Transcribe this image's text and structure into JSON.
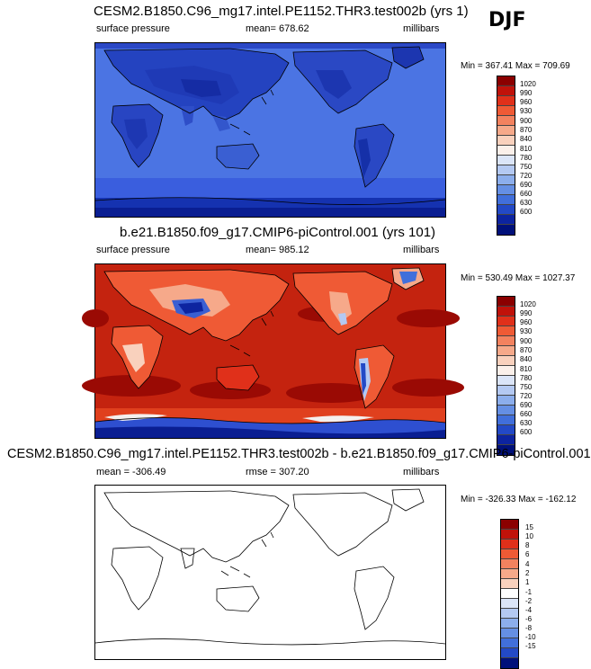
{
  "season": "DJF",
  "panels": [
    {
      "title": "CESM2.B1850.C96_mg17.intel.PE1152.THR3.test002b (yrs 1)",
      "left_label": "surface pressure",
      "center_label": "mean= 678.62",
      "right_label": "millibars",
      "minmax": "Min = 367.41 Max = 709.69",
      "colorbar": {
        "labels": [
          "1020",
          "990",
          "960",
          "930",
          "900",
          "870",
          "840",
          "810",
          "780",
          "750",
          "720",
          "690",
          "660",
          "630",
          "600"
        ],
        "colors": [
          "#8b0000",
          "#c0120a",
          "#e0301a",
          "#ef5a35",
          "#f3825f",
          "#f6a98a",
          "#f9d1bd",
          "#fbf0ea",
          "#dbe5f8",
          "#b4c9f2",
          "#8caeec",
          "#658fe4",
          "#416fdb",
          "#2349c6",
          "#0d24a0",
          "#00107a"
        ]
      }
    },
    {
      "title": "b.e21.B1850.f09_g17.CMIP6-piControl.001 (yrs 101)",
      "left_label": "surface pressure",
      "center_label": "mean= 985.12",
      "right_label": "millibars",
      "minmax": "Min = 530.49 Max = 1027.37",
      "colorbar": {
        "labels": [
          "1020",
          "990",
          "960",
          "930",
          "900",
          "870",
          "840",
          "810",
          "780",
          "750",
          "720",
          "690",
          "660",
          "630",
          "600"
        ],
        "colors": [
          "#8b0000",
          "#c0120a",
          "#e0301a",
          "#ef5a35",
          "#f3825f",
          "#f6a98a",
          "#f9d1bd",
          "#fbf0ea",
          "#dbe5f8",
          "#b4c9f2",
          "#8caeec",
          "#658fe4",
          "#416fdb",
          "#2349c6",
          "#0d24a0",
          "#00107a"
        ]
      }
    },
    {
      "title": "CESM2.B1850.C96_mg17.intel.PE1152.THR3.test002b - b.e21.B1850.f09_g17.CMIP6-piControl.001",
      "left_label": "mean = -306.49",
      "center_label": "rmse = 307.20",
      "right_label": "millibars",
      "minmax": "Min = -326.33 Max = -162.12",
      "colorbar": {
        "labels": [
          "15",
          "10",
          "8",
          "6",
          "4",
          "2",
          "1",
          "-1",
          "-2",
          "-4",
          "-6",
          "-8",
          "-10",
          "-15"
        ],
        "colors": [
          "#8b0000",
          "#c0120a",
          "#e0301a",
          "#ef5a35",
          "#f3825f",
          "#f6a98a",
          "#f9d1bd",
          "#ffffff",
          "#dbe5f8",
          "#b4c9f2",
          "#8caeec",
          "#658fe4",
          "#416fdb",
          "#2349c6",
          "#00107a"
        ]
      }
    }
  ],
  "chart_data": [
    {
      "type": "heatmap",
      "title": "CESM2.B1850.C96_mg17.intel.PE1152.THR3.test002b (yrs 1)",
      "variable": "surface pressure",
      "units": "millibars",
      "season": "DJF",
      "mean": 678.62,
      "min": 367.41,
      "max": 709.69,
      "contour_levels": [
        600,
        630,
        660,
        690,
        720,
        750,
        780,
        810,
        840,
        870,
        900,
        930,
        960,
        990,
        1020
      ]
    },
    {
      "type": "heatmap",
      "title": "b.e21.B1850.f09_g17.CMIP6-piControl.001 (yrs 101)",
      "variable": "surface pressure",
      "units": "millibars",
      "season": "DJF",
      "mean": 985.12,
      "min": 530.49,
      "max": 1027.37,
      "contour_levels": [
        600,
        630,
        660,
        690,
        720,
        750,
        780,
        810,
        840,
        870,
        900,
        930,
        960,
        990,
        1020
      ]
    },
    {
      "type": "heatmap",
      "title": "CESM2.B1850.C96_mg17.intel.PE1152.THR3.test002b - b.e21.B1850.f09_g17.CMIP6-piControl.001",
      "units": "millibars",
      "mean": -306.49,
      "rmse": 307.2,
      "min": -326.33,
      "max": -162.12,
      "contour_levels": [
        -15,
        -10,
        -8,
        -6,
        -4,
        -2,
        -1,
        1,
        2,
        4,
        6,
        8,
        10,
        15
      ]
    }
  ]
}
